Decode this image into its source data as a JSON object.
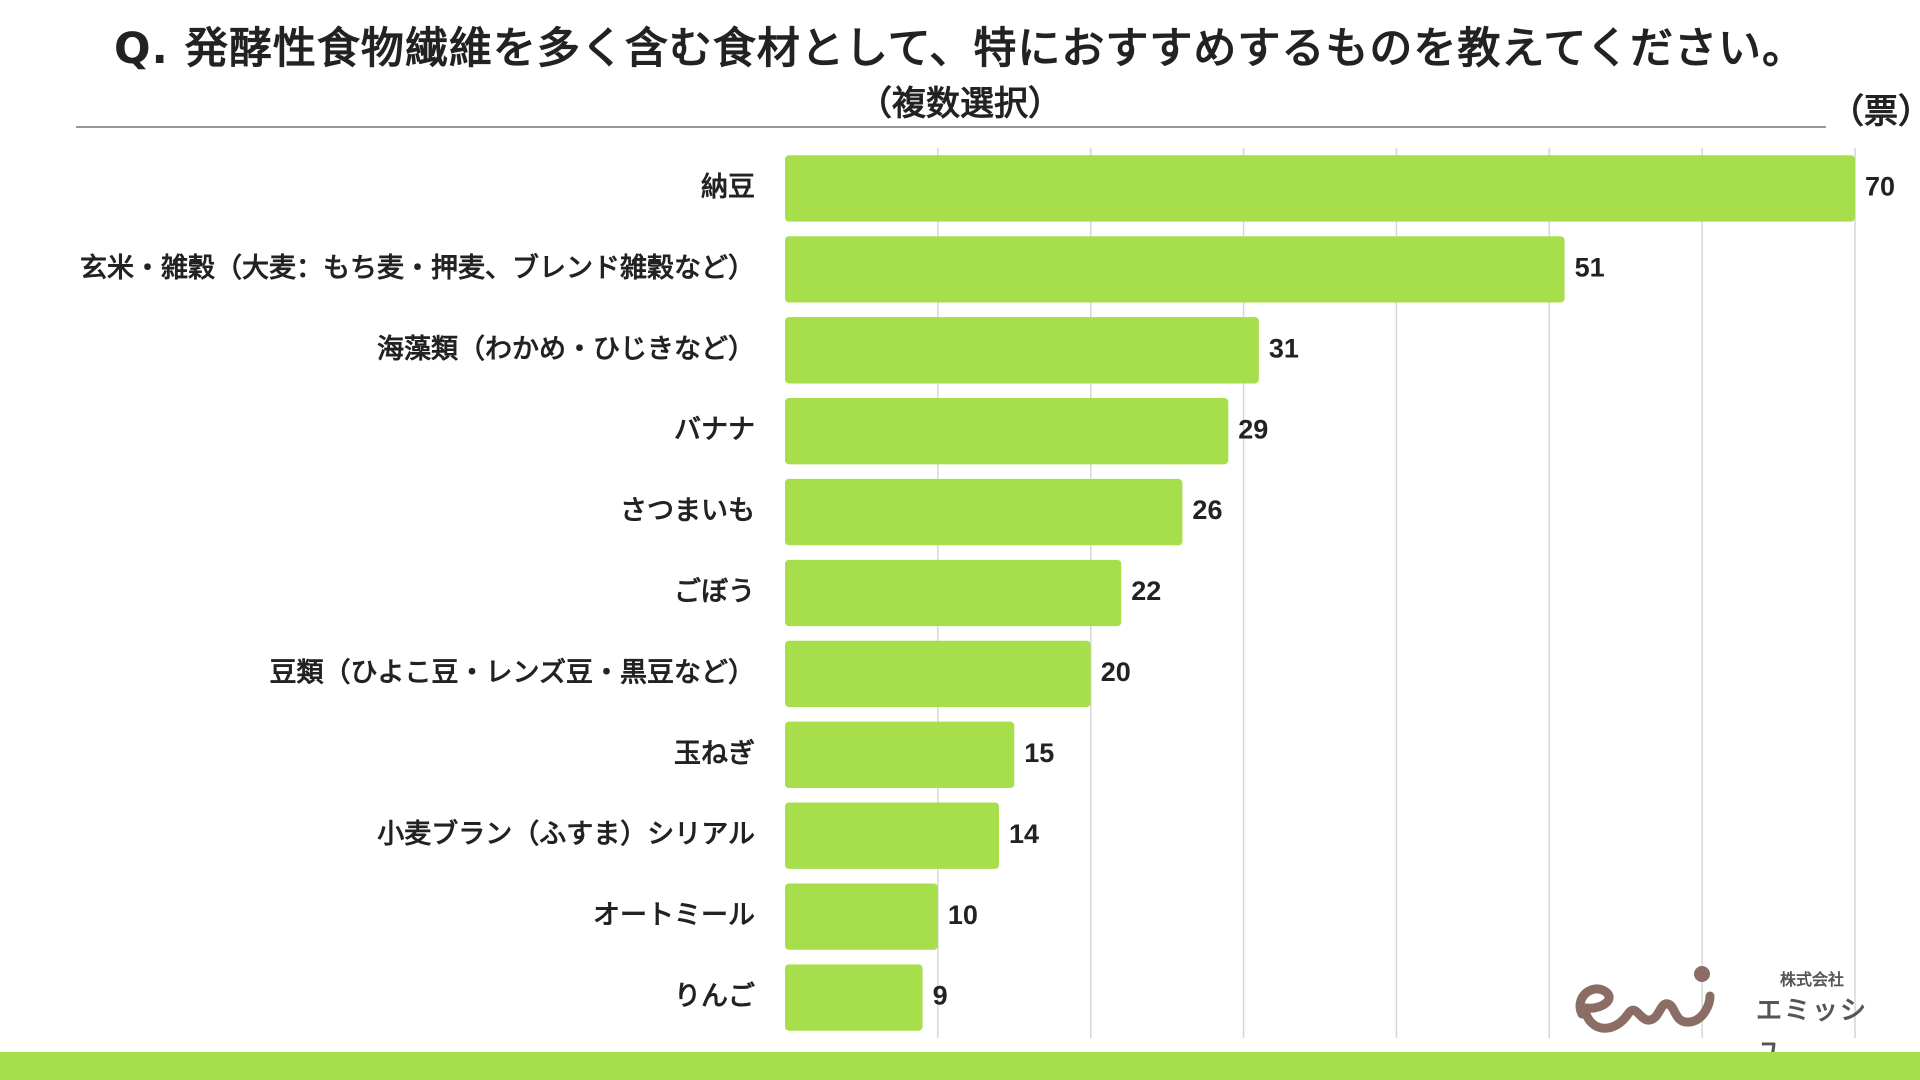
{
  "title": "Q. 発酵性食物繊維を多く含む食材として、特におすすめするものを教えてください。",
  "subtitle": "（複数選択）",
  "unit_label": "（票）",
  "colors": {
    "bar": "#a6de4c",
    "grid": "#d6d6d6",
    "accent_bar": "#a6de4c",
    "logo": "#8b6d66"
  },
  "logo": {
    "company_type": "株式会社",
    "company_name": "エミッシュ",
    "mark_icon": "emi-logo-icon"
  },
  "chart_data": {
    "type": "bar",
    "orientation": "horizontal",
    "categories": [
      "納豆",
      "玄米・雑穀（大麦：もち麦・押麦、ブレンド雑穀など）",
      "海藻類（わかめ・ひじきなど）",
      "バナナ",
      "さつまいも",
      "ごぼう",
      "豆類（ひよこ豆・レンズ豆・黒豆など）",
      "玉ねぎ",
      "小麦ブラン（ふすま）シリアル",
      "オートミール",
      "りんご"
    ],
    "values": [
      70,
      51,
      31,
      29,
      26,
      22,
      20,
      15,
      14,
      10,
      9
    ],
    "xlim": [
      0,
      70
    ],
    "grid_step": 10,
    "grid": true,
    "data_labels": true
  }
}
